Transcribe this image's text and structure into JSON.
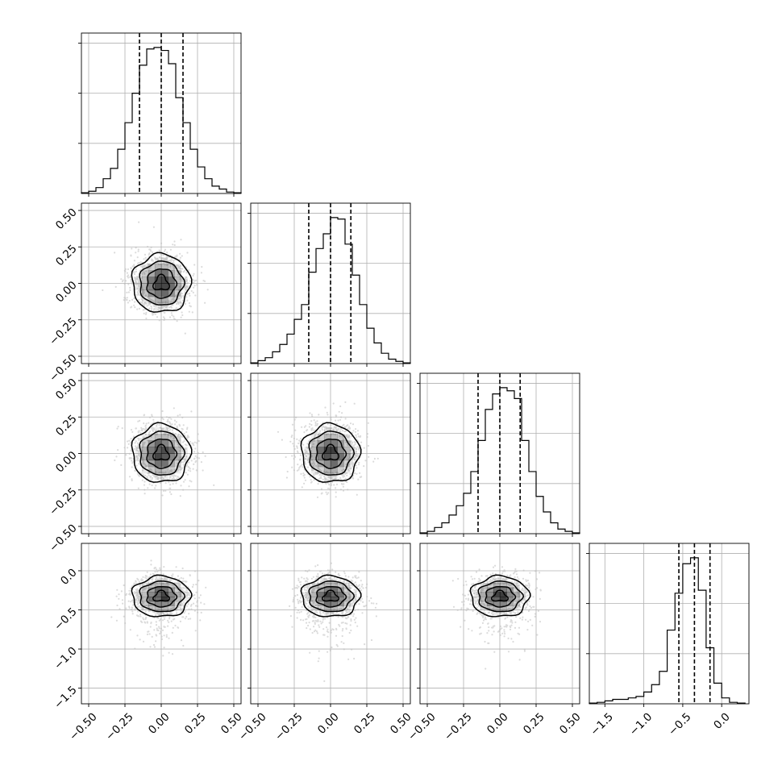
{
  "chart_data": {
    "type": "corner",
    "title": "",
    "n_params": 4,
    "axes": [
      {
        "range": [
          -0.55,
          0.55
        ],
        "ticks": [
          -0.5,
          -0.25,
          0.0,
          0.25,
          0.5
        ],
        "tick_labels": [
          "−0.50",
          "−0.25",
          "0.00",
          "0.25",
          "0.50"
        ]
      },
      {
        "range": [
          -0.55,
          0.55
        ],
        "ticks": [
          -0.5,
          -0.25,
          0.0,
          0.25,
          0.5
        ],
        "tick_labels": [
          "−0.50",
          "−0.25",
          "0.00",
          "0.25",
          "0.50"
        ]
      },
      {
        "range": [
          -0.55,
          0.55
        ],
        "ticks": [
          -0.5,
          -0.25,
          0.0,
          0.25,
          0.5
        ],
        "tick_labels": [
          "−0.50",
          "−0.25",
          "0.00",
          "0.25",
          "0.50"
        ]
      },
      {
        "range": [
          -1.7,
          0.35
        ],
        "ticks": [
          -1.5,
          -1.0,
          -0.5,
          0.0
        ],
        "tick_labels": [
          "−1.5",
          "−1.0",
          "−0.5",
          "0.0"
        ]
      }
    ],
    "marginals": [
      {
        "param": 0,
        "quantiles": [
          -0.15,
          0.0,
          0.15
        ],
        "bin_edges": [
          -0.55,
          -0.5,
          -0.45,
          -0.4,
          -0.35,
          -0.3,
          -0.25,
          -0.2,
          -0.15,
          -0.1,
          -0.05,
          0.0,
          0.05,
          0.1,
          0.15,
          0.2,
          0.25,
          0.3,
          0.35,
          0.4,
          0.45,
          0.5,
          0.55
        ],
        "counts": [
          0.005,
          0.015,
          0.04,
          0.1,
          0.17,
          0.3,
          0.48,
          0.68,
          0.87,
          0.98,
          0.99,
          0.97,
          0.88,
          0.65,
          0.48,
          0.3,
          0.18,
          0.1,
          0.05,
          0.03,
          0.01,
          0.005
        ]
      },
      {
        "param": 1,
        "quantiles": [
          -0.15,
          0.0,
          0.14
        ],
        "bin_edges": [
          -0.55,
          -0.5,
          -0.45,
          -0.4,
          -0.35,
          -0.3,
          -0.25,
          -0.2,
          -0.15,
          -0.1,
          -0.05,
          0.0,
          0.05,
          0.1,
          0.15,
          0.2,
          0.25,
          0.3,
          0.35,
          0.4,
          0.45,
          0.5,
          0.55
        ],
        "counts": [
          0.005,
          0.02,
          0.04,
          0.08,
          0.13,
          0.2,
          0.3,
          0.4,
          0.62,
          0.78,
          0.88,
          0.99,
          0.98,
          0.81,
          0.6,
          0.4,
          0.24,
          0.14,
          0.07,
          0.03,
          0.015,
          0.005
        ]
      },
      {
        "param": 2,
        "quantiles": [
          -0.15,
          0.0,
          0.14
        ],
        "bin_edges": [
          -0.55,
          -0.5,
          -0.45,
          -0.4,
          -0.35,
          -0.3,
          -0.25,
          -0.2,
          -0.15,
          -0.1,
          -0.05,
          0.0,
          0.05,
          0.1,
          0.15,
          0.2,
          0.25,
          0.3,
          0.35,
          0.4,
          0.45,
          0.5,
          0.55
        ],
        "counts": [
          0.005,
          0.015,
          0.04,
          0.07,
          0.12,
          0.18,
          0.26,
          0.4,
          0.6,
          0.8,
          0.9,
          0.94,
          0.92,
          0.87,
          0.6,
          0.4,
          0.24,
          0.14,
          0.07,
          0.03,
          0.015,
          0.005
        ]
      },
      {
        "param": 3,
        "quantiles": [
          -0.55,
          -0.35,
          -0.15
        ],
        "bin_edges": [
          -1.7,
          -1.6,
          -1.5,
          -1.4,
          -1.3,
          -1.2,
          -1.1,
          -1.0,
          -0.9,
          -0.8,
          -0.7,
          -0.6,
          -0.5,
          -0.4,
          -0.3,
          -0.2,
          -0.1,
          0.0,
          0.1,
          0.2,
          0.3
        ],
        "counts": [
          0.005,
          0.01,
          0.02,
          0.03,
          0.03,
          0.04,
          0.05,
          0.08,
          0.13,
          0.22,
          0.5,
          0.75,
          0.95,
          0.99,
          0.77,
          0.38,
          0.14,
          0.04,
          0.01,
          0.005
        ]
      }
    ],
    "pairs": [
      {
        "x_param": 0,
        "y_param": 1,
        "mean": [
          0.0,
          0.0
        ],
        "sd": [
          0.1,
          0.1
        ]
      },
      {
        "x_param": 0,
        "y_param": 2,
        "mean": [
          0.0,
          0.0
        ],
        "sd": [
          0.1,
          0.1
        ]
      },
      {
        "x_param": 1,
        "y_param": 2,
        "mean": [
          0.0,
          0.0
        ],
        "sd": [
          0.1,
          0.1
        ]
      },
      {
        "x_param": 0,
        "y_param": 3,
        "mean": [
          0.0,
          -0.33
        ],
        "sd": [
          0.1,
          0.13
        ]
      },
      {
        "x_param": 1,
        "y_param": 3,
        "mean": [
          0.0,
          -0.33
        ],
        "sd": [
          0.1,
          0.13
        ]
      },
      {
        "x_param": 2,
        "y_param": 3,
        "mean": [
          0.0,
          -0.33
        ],
        "sd": [
          0.1,
          0.13
        ]
      }
    ],
    "contour_levels_sigma": [
      0.5,
      1.0,
      1.5,
      2.0
    ],
    "grid": true,
    "colors": {
      "line": "#000000",
      "grid": "#b0b0b0",
      "points": "#bdbdbd",
      "density": "#000000"
    }
  }
}
